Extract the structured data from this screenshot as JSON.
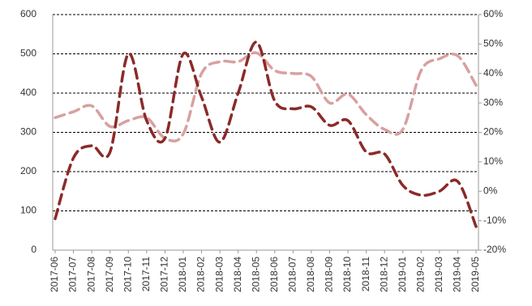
{
  "chart_data": {
    "type": "line",
    "categories": [
      "2017-06",
      "2017-07",
      "2017-08",
      "2017-09",
      "2017-10",
      "2017-11",
      "2017-12",
      "2018-01",
      "2018-02",
      "2018-03",
      "2018-04",
      "2018-05",
      "2018-06",
      "2018-07",
      "2018-08",
      "2018-09",
      "2018-10",
      "2018-11",
      "2018-12",
      "2019-01",
      "2019-02",
      "2019-03",
      "2019-04",
      "2019-05"
    ],
    "series": [
      {
        "color": "#d9a0a0",
        "axis": "y2",
        "values": [
          25,
          27,
          29,
          22,
          24,
          25,
          18,
          19.5,
          40,
          44,
          44,
          47,
          41,
          40,
          39,
          30,
          33,
          26,
          21,
          21,
          41,
          45,
          46,
          36
        ]
      },
      {
        "color": "#8b2a2a",
        "values": [
          80,
          235,
          266,
          250,
          500,
          330,
          285,
          500,
          390,
          275,
          400,
          530,
          380,
          360,
          365,
          318,
          330,
          250,
          245,
          165,
          140,
          150,
          175,
          60
        ]
      }
    ],
    "ylim": [
      0,
      600
    ],
    "yticks": [
      0,
      100,
      200,
      300,
      400,
      500,
      600
    ],
    "y2lim": [
      -20,
      60
    ],
    "y2ticks": [
      {
        "value": -20,
        "label": "-20%"
      },
      {
        "value": -10,
        "label": "-10%"
      },
      {
        "value": 0,
        "label": "0%"
      },
      {
        "value": 10,
        "label": "10%"
      },
      {
        "value": 20,
        "label": "20%"
      },
      {
        "value": 30,
        "label": "30%"
      },
      {
        "value": 40,
        "label": "40%"
      },
      {
        "value": 50,
        "label": "50%"
      },
      {
        "value": 60,
        "label": "60%"
      }
    ],
    "grid": true
  }
}
